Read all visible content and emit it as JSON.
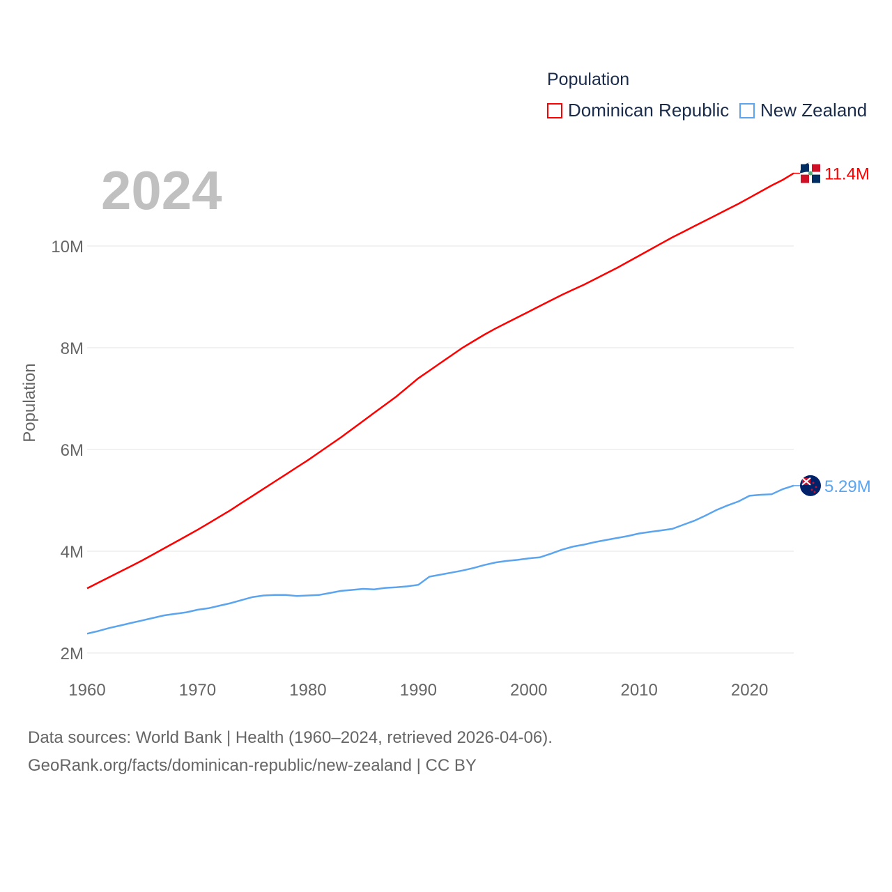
{
  "chart_data": {
    "type": "line",
    "title": "Population",
    "year_label": "2024",
    "ylabel": "Population",
    "xlabel": "",
    "xlim": [
      1960,
      2024
    ],
    "ylim": [
      2000000,
      11500000
    ],
    "x_ticks": [
      1960,
      1970,
      1980,
      1990,
      2000,
      2010,
      2020
    ],
    "y_ticks": [
      {
        "v": 2,
        "label": "2M"
      },
      {
        "v": 4,
        "label": "4M"
      },
      {
        "v": 6,
        "label": "6M"
      },
      {
        "v": 8,
        "label": "8M"
      },
      {
        "v": 10,
        "label": "10M"
      }
    ],
    "grid": true,
    "legend_position": "top-right",
    "x_start": 1960,
    "unit": "millions",
    "series": [
      {
        "name": "Dominican Republic",
        "color": "#ff0000",
        "end_label": "11.4M",
        "flag": "dominican-republic-flag-icon",
        "values": [
          3.27,
          3.38,
          3.49,
          3.6,
          3.71,
          3.82,
          3.94,
          4.06,
          4.18,
          4.3,
          4.42,
          4.55,
          4.68,
          4.81,
          4.95,
          5.09,
          5.23,
          5.37,
          5.51,
          5.65,
          5.79,
          5.94,
          6.09,
          6.24,
          6.4,
          6.56,
          6.72,
          6.88,
          7.04,
          7.22,
          7.4,
          7.55,
          7.7,
          7.85,
          8.0,
          8.13,
          8.26,
          8.38,
          8.49,
          8.6,
          8.71,
          8.82,
          8.93,
          9.04,
          9.14,
          9.24,
          9.35,
          9.46,
          9.57,
          9.69,
          9.81,
          9.93,
          10.05,
          10.17,
          10.28,
          10.39,
          10.5,
          10.61,
          10.72,
          10.83,
          10.95,
          11.07,
          11.19,
          11.3,
          11.43
        ]
      },
      {
        "name": "New Zealand",
        "color": "#5ba4ee",
        "end_label": "5.29M",
        "flag": "new-zealand-flag-icon",
        "values": [
          2.38,
          2.43,
          2.49,
          2.54,
          2.59,
          2.64,
          2.69,
          2.74,
          2.77,
          2.8,
          2.85,
          2.88,
          2.93,
          2.98,
          3.04,
          3.1,
          3.13,
          3.14,
          3.14,
          3.12,
          3.13,
          3.14,
          3.18,
          3.22,
          3.24,
          3.26,
          3.25,
          3.28,
          3.29,
          3.31,
          3.34,
          3.5,
          3.54,
          3.58,
          3.62,
          3.67,
          3.73,
          3.78,
          3.81,
          3.83,
          3.86,
          3.88,
          3.95,
          4.03,
          4.09,
          4.13,
          4.18,
          4.22,
          4.26,
          4.3,
          4.35,
          4.38,
          4.41,
          4.44,
          4.52,
          4.6,
          4.7,
          4.81,
          4.9,
          4.98,
          5.09,
          5.11,
          5.12,
          5.22,
          5.29
        ]
      }
    ]
  },
  "footer": {
    "line1": "Data sources: World Bank | Health (1960–2024, retrieved 2026-04-06).",
    "line2": "GeoRank.org/facts/dominican-republic/new-zealand | CC BY"
  }
}
